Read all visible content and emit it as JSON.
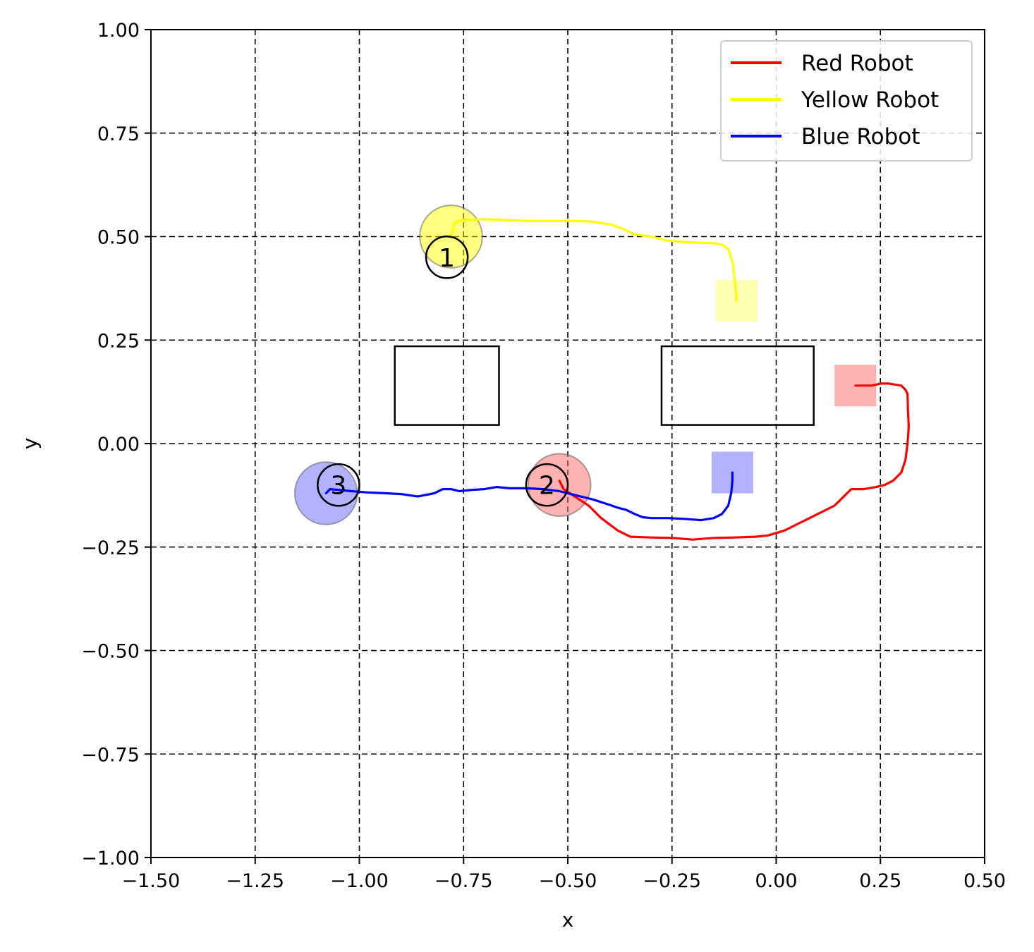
{
  "chart_data": {
    "type": "line",
    "xlabel": "x",
    "ylabel": "y",
    "xlim": [
      -1.5,
      0.5
    ],
    "ylim": [
      -1.0,
      1.0
    ],
    "grid": true,
    "grid_style": "dashed",
    "aspect": "equal",
    "legend_position": "top-right",
    "x_ticks": [
      "−1.50",
      "−1.25",
      "−1.00",
      "−0.75",
      "−0.50",
      "−0.25",
      "0.00",
      "0.25",
      "0.50"
    ],
    "x_tick_values": [
      -1.5,
      -1.25,
      -1.0,
      -0.75,
      -0.5,
      -0.25,
      0.0,
      0.25,
      0.5
    ],
    "y_ticks": [
      "1.00",
      "0.75",
      "0.50",
      "0.25",
      "0.00",
      "−0.25",
      "−0.50",
      "−0.75",
      "−1.00"
    ],
    "y_tick_values": [
      1.0,
      0.75,
      0.5,
      0.25,
      0.0,
      -0.25,
      -0.5,
      -0.75,
      -1.0
    ],
    "series": [
      {
        "name": "Red Robot",
        "color": "#ff0000",
        "points": [
          [
            -0.52,
            -0.09
          ],
          [
            -0.51,
            -0.11
          ],
          [
            -0.48,
            -0.13
          ],
          [
            -0.45,
            -0.15
          ],
          [
            -0.42,
            -0.18
          ],
          [
            -0.38,
            -0.21
          ],
          [
            -0.35,
            -0.225
          ],
          [
            -0.3,
            -0.227
          ],
          [
            -0.25,
            -0.228
          ],
          [
            -0.2,
            -0.232
          ],
          [
            -0.15,
            -0.228
          ],
          [
            -0.1,
            -0.227
          ],
          [
            -0.05,
            -0.225
          ],
          [
            -0.02,
            -0.222
          ],
          [
            0.02,
            -0.21
          ],
          [
            0.06,
            -0.19
          ],
          [
            0.1,
            -0.17
          ],
          [
            0.14,
            -0.15
          ],
          [
            0.16,
            -0.13
          ],
          [
            0.18,
            -0.11
          ],
          [
            0.21,
            -0.11
          ],
          [
            0.24,
            -0.105
          ],
          [
            0.26,
            -0.1
          ],
          [
            0.28,
            -0.09
          ],
          [
            0.3,
            -0.07
          ],
          [
            0.31,
            -0.04
          ],
          [
            0.315,
            0.0
          ],
          [
            0.318,
            0.04
          ],
          [
            0.316,
            0.08
          ],
          [
            0.315,
            0.12
          ],
          [
            0.31,
            0.13
          ],
          [
            0.3,
            0.14
          ],
          [
            0.27,
            0.145
          ],
          [
            0.25,
            0.145
          ],
          [
            0.23,
            0.14
          ],
          [
            0.21,
            0.14
          ],
          [
            0.19,
            0.14
          ]
        ]
      },
      {
        "name": "Yellow Robot",
        "color": "#ffff00",
        "points": [
          [
            -0.78,
            0.5
          ],
          [
            -0.775,
            0.52
          ],
          [
            -0.77,
            0.535
          ],
          [
            -0.75,
            0.54
          ],
          [
            -0.7,
            0.542
          ],
          [
            -0.65,
            0.54
          ],
          [
            -0.6,
            0.538
          ],
          [
            -0.55,
            0.538
          ],
          [
            -0.5,
            0.538
          ],
          [
            -0.45,
            0.537
          ],
          [
            -0.4,
            0.53
          ],
          [
            -0.37,
            0.52
          ],
          [
            -0.34,
            0.505
          ],
          [
            -0.3,
            0.5
          ],
          [
            -0.26,
            0.49
          ],
          [
            -0.22,
            0.487
          ],
          [
            -0.18,
            0.485
          ],
          [
            -0.15,
            0.484
          ],
          [
            -0.13,
            0.481
          ],
          [
            -0.115,
            0.47
          ],
          [
            -0.105,
            0.44
          ],
          [
            -0.1,
            0.4
          ],
          [
            -0.097,
            0.37
          ],
          [
            -0.095,
            0.345
          ]
        ]
      },
      {
        "name": "Blue Robot",
        "color": "#0000ff",
        "points": [
          [
            -1.08,
            -0.12
          ],
          [
            -1.07,
            -0.11
          ],
          [
            -1.05,
            -0.112
          ],
          [
            -1.02,
            -0.115
          ],
          [
            -0.98,
            -0.118
          ],
          [
            -0.94,
            -0.12
          ],
          [
            -0.9,
            -0.122
          ],
          [
            -0.86,
            -0.128
          ],
          [
            -0.82,
            -0.12
          ],
          [
            -0.8,
            -0.11
          ],
          [
            -0.78,
            -0.11
          ],
          [
            -0.76,
            -0.115
          ],
          [
            -0.73,
            -0.112
          ],
          [
            -0.7,
            -0.11
          ],
          [
            -0.67,
            -0.105
          ],
          [
            -0.64,
            -0.108
          ],
          [
            -0.6,
            -0.108
          ],
          [
            -0.56,
            -0.11
          ],
          [
            -0.52,
            -0.115
          ],
          [
            -0.48,
            -0.125
          ],
          [
            -0.44,
            -0.135
          ],
          [
            -0.4,
            -0.148
          ],
          [
            -0.38,
            -0.155
          ],
          [
            -0.36,
            -0.16
          ],
          [
            -0.34,
            -0.17
          ],
          [
            -0.32,
            -0.178
          ],
          [
            -0.3,
            -0.18
          ],
          [
            -0.26,
            -0.18
          ],
          [
            -0.22,
            -0.182
          ],
          [
            -0.18,
            -0.185
          ],
          [
            -0.15,
            -0.18
          ],
          [
            -0.13,
            -0.17
          ],
          [
            -0.115,
            -0.15
          ],
          [
            -0.108,
            -0.12
          ],
          [
            -0.105,
            -0.09
          ],
          [
            -0.105,
            -0.07
          ]
        ]
      }
    ],
    "starts": [
      {
        "label": "1",
        "x": -0.79,
        "y": 0.45,
        "r": 0.05
      },
      {
        "label": "2",
        "x": -0.55,
        "y": -0.1,
        "r": 0.05
      },
      {
        "label": "3",
        "x": -1.05,
        "y": -0.1,
        "r": 0.05
      }
    ],
    "robots": [
      {
        "color": "#ffff00",
        "x": -0.78,
        "y": 0.5,
        "r": 0.075
      },
      {
        "color": "#ff6666",
        "x": -0.52,
        "y": -0.1,
        "r": 0.075
      },
      {
        "color": "#6666ff",
        "x": -1.08,
        "y": -0.12,
        "r": 0.075
      }
    ],
    "goals": [
      {
        "color": "#ffff66",
        "x": -0.095,
        "y": 0.345,
        "half": 0.05
      },
      {
        "color": "#ff6666",
        "x": 0.19,
        "y": 0.14,
        "half": 0.05
      },
      {
        "color": "#6666ff",
        "x": -0.105,
        "y": -0.07,
        "half": 0.05
      }
    ],
    "obstacles": [
      {
        "x0": -0.915,
        "y0": 0.045,
        "x1": -0.665,
        "y1": 0.235
      },
      {
        "x0": -0.275,
        "y0": 0.045,
        "x1": 0.09,
        "y1": 0.235
      }
    ]
  }
}
